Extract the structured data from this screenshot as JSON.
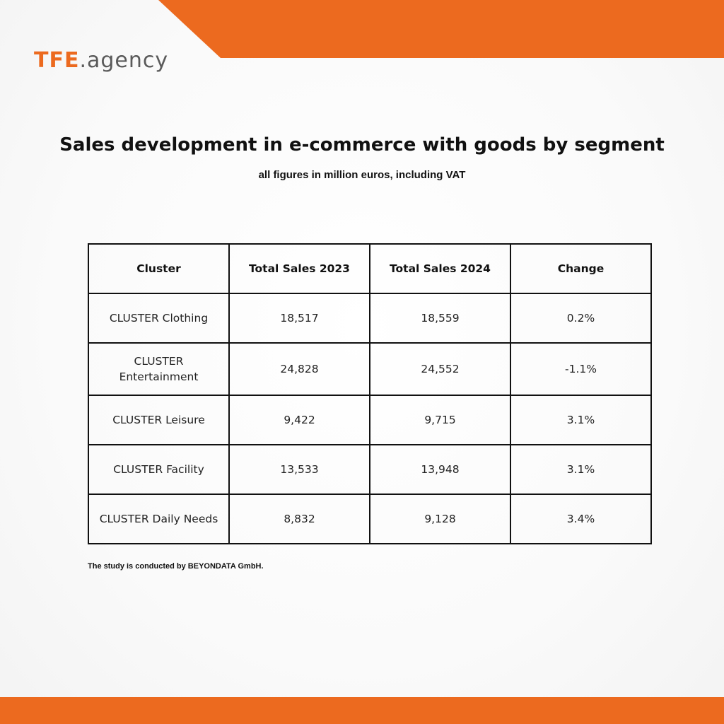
{
  "colors": {
    "accent": "#EC6A1F",
    "text": "#111111",
    "logo_suffix": "#5a5a5a"
  },
  "logo": {
    "brand": "TFE",
    "suffix": ".agency"
  },
  "chart_data": {
    "type": "table",
    "title": "Sales development in e-commerce with goods by segment",
    "subtitle": "all figures in million euros, including VAT",
    "columns": [
      "Cluster",
      "Total Sales 2023",
      "Total Sales 2024",
      "Change"
    ],
    "rows": [
      [
        "CLUSTER Clothing",
        "18,517",
        "18,559",
        "0.2%"
      ],
      [
        "CLUSTER Entertainment",
        "24,828",
        "24,552",
        "-1.1%"
      ],
      [
        "CLUSTER Leisure",
        "9,422",
        "9,715",
        "3.1%"
      ],
      [
        "CLUSTER Facility",
        "13,533",
        "13,948",
        "3.1%"
      ],
      [
        "CLUSTER Daily Needs",
        "8,832",
        "9,128",
        "3.4%"
      ]
    ],
    "footnote": "The study is conducted by BEYONDATA GmbH."
  }
}
